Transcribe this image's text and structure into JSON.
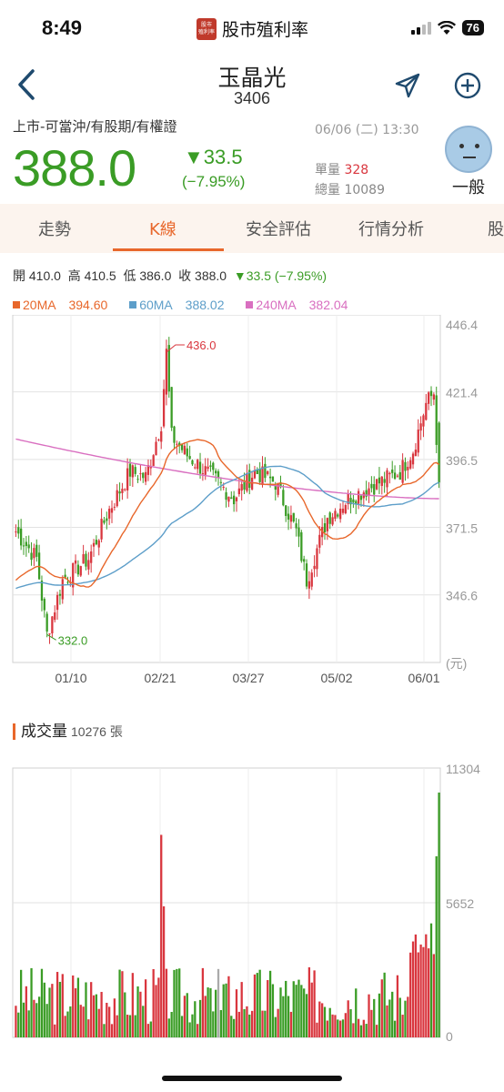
{
  "status_bar": {
    "time": "8:49",
    "app_logo_text_1": "股市",
    "app_logo_text_2": "殖利率",
    "app_name": "股市殖利率",
    "battery": "76"
  },
  "nav": {
    "title": "玉晶光",
    "code": "3406"
  },
  "quote": {
    "market": "上市-可當沖/有股期/有權證",
    "price": "388.0",
    "change": "▼33.5",
    "change_pct": "(−7.95%)",
    "date": "06/06 (二) 13:30",
    "unit_vol_label": "單量",
    "unit_vol": "328",
    "total_vol_label": "總量",
    "total_vol": "10089",
    "sentiment": "一般"
  },
  "tabs": [
    {
      "label": "走勢"
    },
    {
      "label": "K線",
      "active": true
    },
    {
      "label": "安全評估"
    },
    {
      "label": "行情分析"
    },
    {
      "label": "股"
    }
  ],
  "ohlc": {
    "open_label": "開",
    "open": "410.0",
    "high_label": "高",
    "high": "410.5",
    "low_label": "低",
    "low": "386.0",
    "close_label": "收",
    "close": "388.0",
    "change": "▼33.5 (−7.95%)"
  },
  "ma_legend": [
    {
      "name": "20MA",
      "value": "394.60",
      "color": "#e8672b"
    },
    {
      "name": "60MA",
      "value": "388.02",
      "color": "#5d9ec9"
    },
    {
      "name": "240MA",
      "value": "382.04",
      "color": "#d96fc0"
    }
  ],
  "colors": {
    "up": "#d9363e",
    "down": "#3a9c25",
    "flat": "#aaaaaa",
    "accent": "#e8672b"
  },
  "chart_data": [
    {
      "type": "candlestick",
      "y_ticks": [
        "446.4",
        "421.4",
        "396.5",
        "371.5",
        "346.6"
      ],
      "y_unit": "(元)",
      "x_ticks": [
        "01/10",
        "02/21",
        "03/27",
        "05/02",
        "06/01"
      ],
      "ylim": [
        321.7,
        446.4
      ],
      "annotations": [
        {
          "label": "436.0",
          "value": 436.0,
          "type": "max"
        },
        {
          "label": "332.0",
          "value": 332.0,
          "type": "min"
        }
      ],
      "ma_start": {
        "ma20": 352,
        "ma60": 349,
        "ma240": 404
      },
      "ma_end": {
        "ma20": 394.6,
        "ma60": 388.02,
        "ma240": 382.04
      },
      "last_candle": {
        "open": 410.0,
        "high": 410.5,
        "low": 386.0,
        "close": 388.0
      },
      "grid": true
    },
    {
      "type": "bar",
      "title": "成交量",
      "last_volume": "10276",
      "unit": "張",
      "y_ticks": [
        "11304",
        "5652",
        "0"
      ],
      "ylim": [
        0,
        11304
      ],
      "grid": true
    }
  ]
}
